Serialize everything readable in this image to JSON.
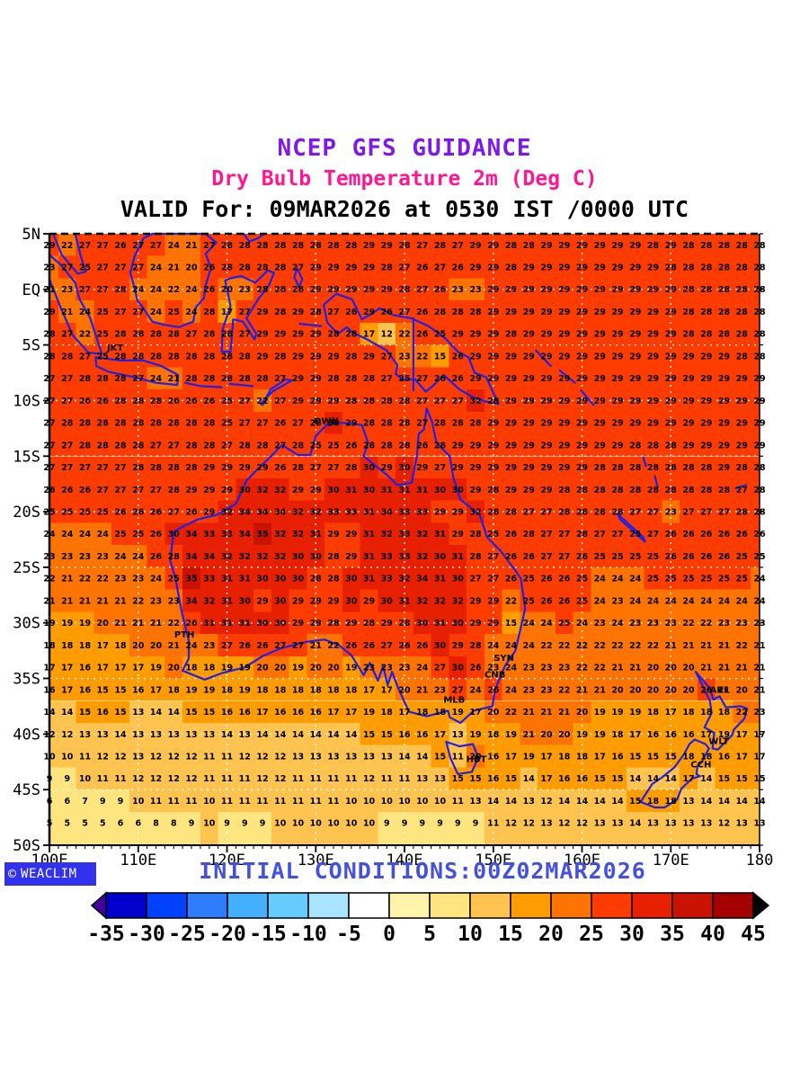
{
  "titles": {
    "line1": "NCEP GFS GUIDANCE",
    "line2": "Dry Bulb Temperature 2m (Deg C)",
    "line3": "VALID For: 09MAR2026 at 0530 IST /0000 UTC"
  },
  "footer": {
    "initial_conditions": "INITIAL CONDITIONS:00Z02MAR2026",
    "logo_text": "WEACLIM",
    "logo_symbol": "©"
  },
  "colors": {
    "title1": "#7D1AEA",
    "title2": "#FF1792",
    "initial_conditions": "#4550DF",
    "logo_bg": "#3232EE",
    "coastline": "#2020E8",
    "grid_dots": "#FFFFFF",
    "number_text": "#000000"
  },
  "map": {
    "lat_tick_labels": [
      "5N",
      "EQ",
      "5S",
      "10S",
      "15S",
      "20S",
      "25S",
      "30S",
      "35S",
      "40S",
      "45S",
      "50S"
    ],
    "lat_tick_values": [
      5,
      0,
      -5,
      -10,
      -15,
      -20,
      -25,
      -30,
      -35,
      -40,
      -45,
      -50
    ],
    "lon_tick_labels": [
      "100E",
      "110E",
      "120E",
      "130E",
      "140E",
      "150E",
      "160E",
      "170E",
      "180"
    ],
    "lon_tick_values": [
      100,
      110,
      120,
      130,
      140,
      150,
      160,
      170,
      180
    ],
    "cities": [
      {
        "code": "JKT",
        "lon": 107.4,
        "lat": -5.5
      },
      {
        "code": "DWN",
        "lon": 131.2,
        "lat": -12.1
      },
      {
        "code": "PTH",
        "lon": 115.2,
        "lat": -31.3
      },
      {
        "code": "SYN",
        "lon": 151.2,
        "lat": -33.4
      },
      {
        "code": "CNB",
        "lon": 150.2,
        "lat": -34.9
      },
      {
        "code": "MLB",
        "lon": 145.6,
        "lat": -37.2
      },
      {
        "code": "HBT",
        "lon": 148.1,
        "lat": -42.5
      },
      {
        "code": "AKL",
        "lon": 175.5,
        "lat": -36.3
      },
      {
        "code": "WLT",
        "lon": 175.4,
        "lat": -40.9
      },
      {
        "code": "CCH",
        "lon": 173.4,
        "lat": -43.0
      }
    ]
  },
  "colorbar": {
    "tick_labels": [
      "-35",
      "-30",
      "-25",
      "-20",
      "-15",
      "-10",
      "-5",
      "0",
      "5",
      "10",
      "15",
      "20",
      "25",
      "30",
      "35",
      "40",
      "45"
    ],
    "segment_colors": [
      "#0000CC",
      "#0040FF",
      "#2E7CFF",
      "#45AFFF",
      "#66CCFF",
      "#A8E4FF",
      "#FFFFFF",
      "#FFF5AA",
      "#FFE57F",
      "#FFC34F",
      "#FF9C00",
      "#FF7400",
      "#FF3C00",
      "#E62000",
      "#C91200",
      "#A50000"
    ],
    "under_arrow_color": "#43009E",
    "over_arrow_color": "#000000",
    "min": -35,
    "max": 45,
    "step": 5
  },
  "chart_data": {
    "type": "heatmap",
    "title": "NCEP GFS GUIDANCE",
    "subtitle": "Dry Bulb Temperature 2m (Deg C)",
    "valid": "VALID For: 09MAR2026 at 0530 IST /0000 UTC",
    "units": "Deg C",
    "lon_start": 100,
    "lon_step": 2,
    "lon_count": 41,
    "lat_start": 4,
    "lat_step": -2,
    "lat_count": 27,
    "lon_range": [
      100,
      180
    ],
    "lat_range": [
      5,
      -50
    ],
    "values": [
      [
        29,
        22,
        27,
        27,
        26,
        27,
        27,
        24,
        21,
        27,
        28,
        28,
        28,
        28,
        28,
        28,
        28,
        28,
        29,
        29,
        28,
        27,
        28,
        27,
        29,
        29,
        28,
        28,
        29,
        29,
        29,
        29,
        29,
        29,
        28,
        29,
        28,
        28,
        28,
        28,
        28
      ],
      [
        23,
        27,
        25,
        27,
        27,
        27,
        24,
        21,
        20,
        26,
        28,
        28,
        28,
        28,
        27,
        29,
        29,
        29,
        29,
        28,
        27,
        26,
        27,
        26,
        29,
        29,
        28,
        29,
        29,
        29,
        29,
        29,
        29,
        29,
        29,
        28,
        28,
        28,
        28,
        28,
        28
      ],
      [
        21,
        23,
        27,
        27,
        28,
        24,
        24,
        22,
        24,
        26,
        20,
        23,
        28,
        28,
        28,
        29,
        29,
        29,
        29,
        29,
        28,
        27,
        26,
        23,
        23,
        29,
        29,
        29,
        29,
        29,
        29,
        29,
        29,
        29,
        29,
        29,
        28,
        28,
        28,
        28,
        28
      ],
      [
        29,
        21,
        24,
        25,
        27,
        27,
        24,
        25,
        24,
        28,
        17,
        27,
        29,
        28,
        29,
        28,
        27,
        26,
        29,
        26,
        27,
        26,
        28,
        28,
        28,
        29,
        29,
        29,
        29,
        29,
        29,
        29,
        29,
        29,
        29,
        29,
        28,
        28,
        28,
        28,
        28
      ],
      [
        28,
        27,
        22,
        25,
        28,
        28,
        28,
        28,
        27,
        28,
        28,
        27,
        29,
        29,
        29,
        29,
        28,
        28,
        17,
        12,
        22,
        26,
        25,
        29,
        29,
        29,
        28,
        29,
        29,
        29,
        29,
        29,
        29,
        29,
        29,
        29,
        28,
        28,
        28,
        28,
        28
      ],
      [
        28,
        28,
        27,
        25,
        28,
        28,
        28,
        28,
        28,
        28,
        28,
        28,
        29,
        28,
        29,
        29,
        29,
        28,
        29,
        27,
        23,
        22,
        15,
        26,
        29,
        29,
        29,
        29,
        29,
        29,
        29,
        29,
        29,
        29,
        29,
        29,
        29,
        29,
        29,
        28,
        28
      ],
      [
        27,
        27,
        28,
        28,
        28,
        27,
        24,
        21,
        28,
        28,
        28,
        28,
        28,
        27,
        29,
        29,
        28,
        28,
        28,
        27,
        25,
        27,
        26,
        26,
        29,
        29,
        29,
        29,
        29,
        29,
        29,
        29,
        29,
        29,
        29,
        29,
        29,
        29,
        29,
        29,
        29
      ],
      [
        27,
        27,
        26,
        26,
        28,
        28,
        28,
        26,
        26,
        26,
        25,
        27,
        22,
        27,
        29,
        29,
        29,
        28,
        28,
        28,
        28,
        27,
        27,
        27,
        32,
        28,
        29,
        29,
        29,
        29,
        29,
        29,
        29,
        29,
        29,
        29,
        29,
        29,
        29,
        29,
        29
      ],
      [
        27,
        28,
        28,
        28,
        28,
        28,
        28,
        28,
        28,
        28,
        25,
        27,
        27,
        26,
        27,
        28,
        30,
        29,
        28,
        28,
        28,
        27,
        28,
        28,
        28,
        29,
        29,
        29,
        29,
        29,
        29,
        29,
        29,
        29,
        29,
        29,
        29,
        29,
        29,
        29,
        29
      ],
      [
        27,
        27,
        28,
        28,
        28,
        28,
        27,
        27,
        28,
        28,
        27,
        28,
        28,
        27,
        28,
        25,
        25,
        26,
        28,
        28,
        28,
        26,
        28,
        29,
        29,
        29,
        29,
        29,
        29,
        29,
        29,
        29,
        29,
        28,
        28,
        28,
        29,
        29,
        29,
        29,
        29
      ],
      [
        27,
        27,
        27,
        27,
        27,
        28,
        28,
        28,
        28,
        29,
        29,
        29,
        29,
        26,
        28,
        27,
        27,
        28,
        30,
        29,
        30,
        29,
        27,
        29,
        29,
        29,
        29,
        29,
        29,
        29,
        29,
        28,
        28,
        28,
        28,
        28,
        28,
        28,
        29,
        28,
        28
      ],
      [
        26,
        26,
        26,
        27,
        27,
        27,
        27,
        28,
        29,
        29,
        29,
        30,
        32,
        32,
        29,
        29,
        30,
        31,
        30,
        31,
        31,
        31,
        30,
        30,
        29,
        28,
        29,
        29,
        29,
        28,
        28,
        28,
        28,
        28,
        28,
        28,
        28,
        28,
        28,
        27,
        28
      ],
      [
        25,
        25,
        25,
        25,
        26,
        26,
        26,
        27,
        26,
        29,
        32,
        34,
        34,
        34,
        32,
        32,
        33,
        33,
        31,
        34,
        33,
        33,
        29,
        29,
        32,
        28,
        28,
        27,
        27,
        28,
        28,
        28,
        28,
        27,
        27,
        23,
        27,
        27,
        27,
        28,
        28
      ],
      [
        24,
        24,
        24,
        24,
        25,
        25,
        26,
        30,
        34,
        33,
        33,
        34,
        35,
        32,
        32,
        31,
        29,
        29,
        31,
        32,
        33,
        32,
        31,
        29,
        28,
        25,
        26,
        28,
        27,
        27,
        28,
        27,
        27,
        25,
        27,
        26,
        26,
        26,
        26,
        26,
        26
      ],
      [
        23,
        23,
        23,
        23,
        24,
        24,
        26,
        28,
        34,
        34,
        32,
        32,
        32,
        32,
        30,
        30,
        28,
        29,
        31,
        33,
        33,
        32,
        30,
        31,
        28,
        27,
        26,
        26,
        27,
        27,
        26,
        25,
        25,
        25,
        25,
        26,
        26,
        26,
        26,
        25,
        25
      ],
      [
        22,
        21,
        22,
        22,
        23,
        23,
        24,
        25,
        35,
        33,
        31,
        31,
        30,
        30,
        30,
        28,
        28,
        30,
        31,
        33,
        32,
        34,
        31,
        30,
        27,
        27,
        26,
        25,
        26,
        26,
        25,
        24,
        24,
        24,
        25,
        25,
        25,
        25,
        25,
        25,
        24
      ],
      [
        21,
        21,
        21,
        21,
        21,
        22,
        23,
        23,
        34,
        32,
        31,
        30,
        29,
        30,
        29,
        29,
        29,
        30,
        29,
        30,
        31,
        32,
        32,
        32,
        29,
        29,
        22,
        25,
        26,
        26,
        25,
        24,
        23,
        24,
        24,
        24,
        24,
        24,
        24,
        24,
        24
      ],
      [
        19,
        19,
        19,
        20,
        21,
        21,
        21,
        22,
        26,
        31,
        31,
        31,
        30,
        30,
        29,
        29,
        28,
        29,
        28,
        29,
        28,
        30,
        31,
        30,
        29,
        29,
        15,
        24,
        24,
        25,
        24,
        23,
        24,
        23,
        23,
        23,
        22,
        22,
        23,
        23,
        23
      ],
      [
        18,
        18,
        18,
        17,
        18,
        20,
        20,
        21,
        24,
        23,
        27,
        26,
        26,
        27,
        27,
        21,
        22,
        26,
        26,
        27,
        26,
        26,
        30,
        29,
        28,
        24,
        24,
        24,
        22,
        22,
        22,
        22,
        22,
        22,
        22,
        21,
        21,
        21,
        21,
        22,
        21
      ],
      [
        17,
        17,
        16,
        17,
        17,
        17,
        19,
        20,
        18,
        18,
        19,
        19,
        20,
        20,
        19,
        20,
        20,
        19,
        23,
        23,
        23,
        24,
        27,
        30,
        26,
        23,
        24,
        23,
        23,
        23,
        22,
        22,
        21,
        21,
        20,
        20,
        20,
        21,
        21,
        21,
        21
      ],
      [
        16,
        17,
        16,
        15,
        15,
        16,
        17,
        18,
        19,
        19,
        18,
        19,
        18,
        18,
        18,
        18,
        18,
        18,
        17,
        17,
        20,
        21,
        23,
        27,
        24,
        26,
        24,
        23,
        23,
        22,
        21,
        21,
        20,
        20,
        20,
        20,
        20,
        26,
        21,
        20,
        21
      ],
      [
        14,
        14,
        15,
        16,
        15,
        13,
        14,
        14,
        15,
        15,
        16,
        16,
        17,
        16,
        16,
        16,
        17,
        17,
        19,
        18,
        17,
        18,
        18,
        19,
        17,
        20,
        22,
        21,
        21,
        21,
        20,
        19,
        19,
        19,
        18,
        17,
        18,
        18,
        18,
        22,
        23
      ],
      [
        12,
        12,
        13,
        13,
        14,
        13,
        13,
        13,
        13,
        13,
        14,
        13,
        14,
        14,
        14,
        14,
        14,
        14,
        15,
        15,
        16,
        16,
        17,
        13,
        19,
        18,
        19,
        21,
        20,
        20,
        19,
        19,
        18,
        17,
        16,
        16,
        16,
        17,
        19,
        17,
        17
      ],
      [
        10,
        10,
        11,
        12,
        12,
        13,
        12,
        12,
        12,
        11,
        11,
        12,
        12,
        12,
        13,
        13,
        13,
        13,
        13,
        13,
        14,
        14,
        15,
        11,
        20,
        16,
        17,
        19,
        17,
        18,
        18,
        17,
        16,
        15,
        15,
        15,
        18,
        18,
        16,
        17,
        17
      ],
      [
        9,
        9,
        10,
        11,
        11,
        12,
        12,
        12,
        12,
        11,
        11,
        11,
        12,
        12,
        11,
        11,
        11,
        11,
        12,
        11,
        11,
        13,
        13,
        15,
        15,
        16,
        15,
        14,
        17,
        16,
        16,
        15,
        15,
        14,
        14,
        14,
        17,
        14,
        15,
        15,
        15
      ],
      [
        6,
        6,
        7,
        9,
        9,
        10,
        11,
        11,
        11,
        10,
        11,
        11,
        11,
        11,
        11,
        11,
        11,
        10,
        10,
        10,
        10,
        10,
        10,
        11,
        13,
        14,
        14,
        13,
        12,
        14,
        14,
        14,
        14,
        15,
        18,
        18,
        13,
        14,
        14,
        14,
        14
      ],
      [
        5,
        5,
        5,
        5,
        6,
        6,
        8,
        8,
        9,
        10,
        9,
        9,
        9,
        10,
        10,
        10,
        10,
        10,
        10,
        9,
        9,
        9,
        9,
        9,
        9,
        11,
        12,
        12,
        13,
        12,
        12,
        13,
        13,
        14,
        13,
        13,
        13,
        13,
        12,
        13,
        13
      ]
    ]
  }
}
